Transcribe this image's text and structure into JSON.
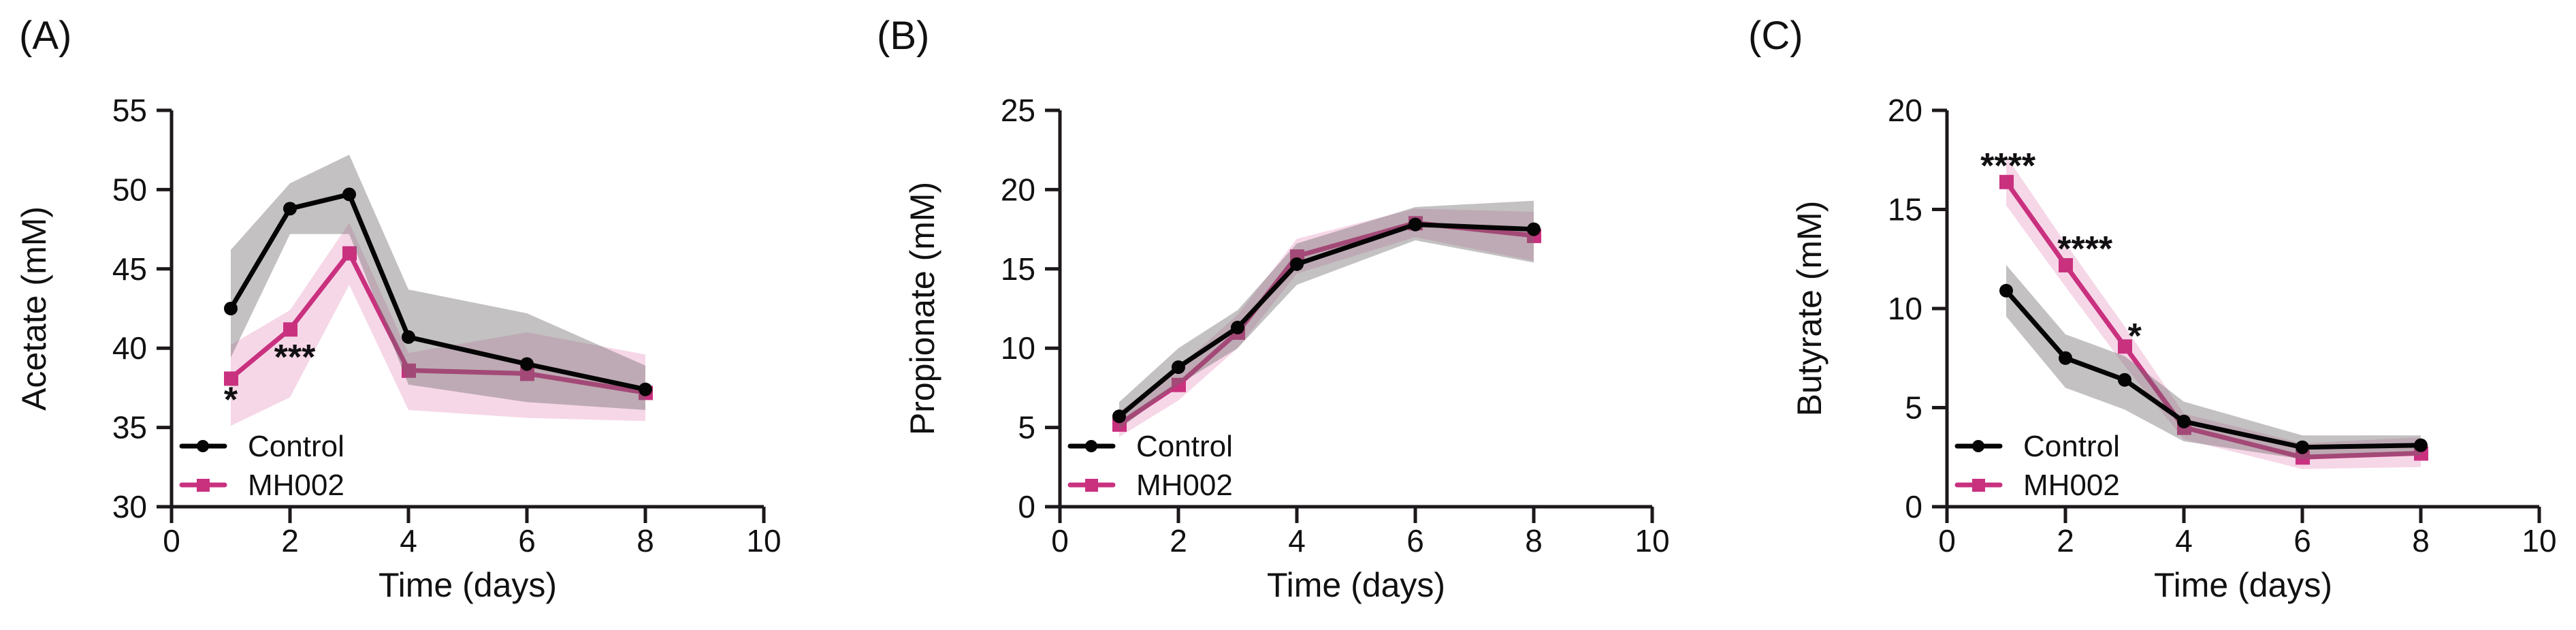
{
  "figure": {
    "background": "#ffffff",
    "colors": {
      "axis": "#1c181b",
      "control_line": "#050505",
      "mh002_line": "#c9317f",
      "control_band": "rgba(112,107,109,0.42)",
      "mh002_band": "rgba(226,132,181,0.32)",
      "text": "#121012"
    },
    "legend": {
      "items": [
        {
          "label": "Control",
          "marker": "circle-icon",
          "color": "#050505"
        },
        {
          "label": "MH002",
          "marker": "square-icon",
          "color": "#c9317f"
        }
      ]
    }
  },
  "chart_data": [
    {
      "panel_label": "(A)",
      "type": "line",
      "title": "",
      "xlabel": "Time (days)",
      "ylabel": "Acetate (mM)",
      "xlim": [
        0,
        10
      ],
      "ylim": [
        30,
        55
      ],
      "xticks": [
        0,
        2,
        4,
        6,
        8,
        10
      ],
      "yticks": [
        30,
        35,
        40,
        45,
        50,
        55
      ],
      "grid": false,
      "legend_position": "inside-bottom-left",
      "x": [
        1,
        2,
        3,
        4,
        6,
        8
      ],
      "series": [
        {
          "name": "Control",
          "marker": "circle",
          "color": "#050505",
          "band_color": "rgba(112,107,109,0.42)",
          "values": [
            42.5,
            48.8,
            49.7,
            40.7,
            39.0,
            37.4
          ],
          "band_upper": [
            46.2,
            50.4,
            52.2,
            43.7,
            42.2,
            38.9
          ],
          "band_lower": [
            39.4,
            47.2,
            47.2,
            37.7,
            36.6,
            36.1
          ]
        },
        {
          "name": "MH002",
          "marker": "square",
          "color": "#c9317f",
          "band_color": "rgba(226,132,181,0.32)",
          "values": [
            38.1,
            41.2,
            46.0,
            38.6,
            38.4,
            37.2
          ],
          "band_upper": [
            40.2,
            42.4,
            47.9,
            39.7,
            41.0,
            39.6
          ],
          "band_lower": [
            35.1,
            36.9,
            44.0,
            36.1,
            35.6,
            35.4
          ]
        }
      ],
      "annotations": [
        {
          "text": "*",
          "x": 1.0,
          "y": 37.1
        },
        {
          "text": "***",
          "x": 2.08,
          "y": 39.8
        }
      ]
    },
    {
      "panel_label": "(B)",
      "type": "line",
      "title": "",
      "xlabel": "Time (days)",
      "ylabel": "Propionate (mM)",
      "xlim": [
        0,
        10
      ],
      "ylim": [
        0,
        25
      ],
      "xticks": [
        0,
        2,
        4,
        6,
        8,
        10
      ],
      "yticks": [
        0,
        5,
        10,
        15,
        20,
        25
      ],
      "grid": false,
      "legend_position": "inside-bottom-left",
      "x": [
        1,
        2,
        3,
        4,
        6,
        8
      ],
      "series": [
        {
          "name": "Control",
          "marker": "circle",
          "color": "#050505",
          "band_color": "rgba(112,107,109,0.42)",
          "values": [
            5.7,
            8.8,
            11.3,
            15.3,
            17.8,
            17.5
          ],
          "band_upper": [
            6.6,
            10.0,
            12.4,
            16.6,
            18.9,
            19.3
          ],
          "band_lower": [
            4.9,
            7.7,
            10.0,
            14.0,
            16.8,
            15.4
          ]
        },
        {
          "name": "MH002",
          "marker": "square",
          "color": "#c9317f",
          "band_color": "rgba(226,132,181,0.32)",
          "values": [
            5.2,
            7.7,
            11.0,
            15.8,
            17.9,
            17.1
          ],
          "band_upper": [
            6.0,
            8.8,
            12.1,
            16.9,
            18.8,
            18.6
          ],
          "band_lower": [
            4.4,
            6.7,
            10.0,
            14.7,
            17.0,
            15.5
          ]
        }
      ],
      "annotations": []
    },
    {
      "panel_label": "(C)",
      "type": "line",
      "title": "",
      "xlabel": "Time (days)",
      "ylabel": "Butyrate (mM)",
      "xlim": [
        0,
        10
      ],
      "ylim": [
        0,
        20
      ],
      "xticks": [
        0,
        2,
        4,
        6,
        8,
        10
      ],
      "yticks": [
        0,
        5,
        10,
        15,
        20
      ],
      "grid": false,
      "legend_position": "inside-bottom-left",
      "x": [
        1,
        2,
        3,
        4,
        6,
        8
      ],
      "series": [
        {
          "name": "Control",
          "marker": "circle",
          "color": "#050505",
          "band_color": "rgba(112,107,109,0.42)",
          "values": [
            10.9,
            7.5,
            6.4,
            4.3,
            3.0,
            3.1
          ],
          "band_upper": [
            12.2,
            8.7,
            7.6,
            5.3,
            3.6,
            3.6
          ],
          "band_lower": [
            9.6,
            6.0,
            4.9,
            3.3,
            2.4,
            2.6
          ]
        },
        {
          "name": "MH002",
          "marker": "square",
          "color": "#c9317f",
          "band_color": "rgba(226,132,181,0.32)",
          "values": [
            16.4,
            12.2,
            8.1,
            4.0,
            2.5,
            2.7
          ],
          "band_upper": [
            17.7,
            13.3,
            9.1,
            4.7,
            3.2,
            3.5
          ],
          "band_lower": [
            15.2,
            11.1,
            7.1,
            3.4,
            1.9,
            2.0
          ]
        }
      ],
      "annotations": [
        {
          "text": "****",
          "x": 1.03,
          "y": 17.5
        },
        {
          "text": "****",
          "x": 2.33,
          "y": 13.3
        },
        {
          "text": "*",
          "x": 3.17,
          "y": 8.9
        }
      ]
    }
  ]
}
